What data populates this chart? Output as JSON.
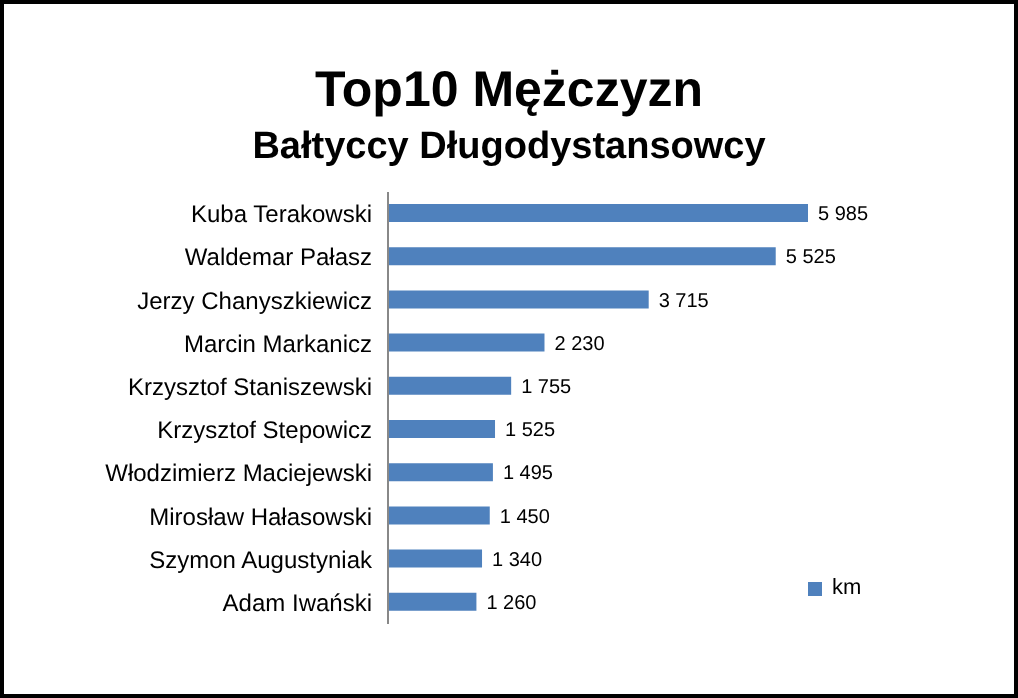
{
  "chart_data": {
    "type": "bar",
    "orientation": "horizontal",
    "title": "Top10 Mężczyzn",
    "subtitle": "Bałtyccy Długodystansowcy",
    "categories": [
      "Kuba Terakowski",
      "Waldemar Pałasz",
      "Jerzy Chanyszkiewicz",
      "Marcin Markanicz",
      "Krzysztof Staniszewski",
      "Krzysztof Stepowicz",
      "Włodzimierz Maciejewski",
      "Mirosław Hałasowski",
      "Szymon Augustyniak",
      "Adam Iwański"
    ],
    "series": [
      {
        "name": "km",
        "color": "#4f81bd",
        "values": [
          5985,
          5525,
          3715,
          2230,
          1755,
          1525,
          1495,
          1450,
          1340,
          1260
        ],
        "value_labels": [
          "5 985",
          "5 525",
          "3 715",
          "2 230",
          "1 755",
          "1 525",
          "1 495",
          "1 450",
          "1 340",
          "1 260"
        ]
      }
    ],
    "legend": "right"
  }
}
